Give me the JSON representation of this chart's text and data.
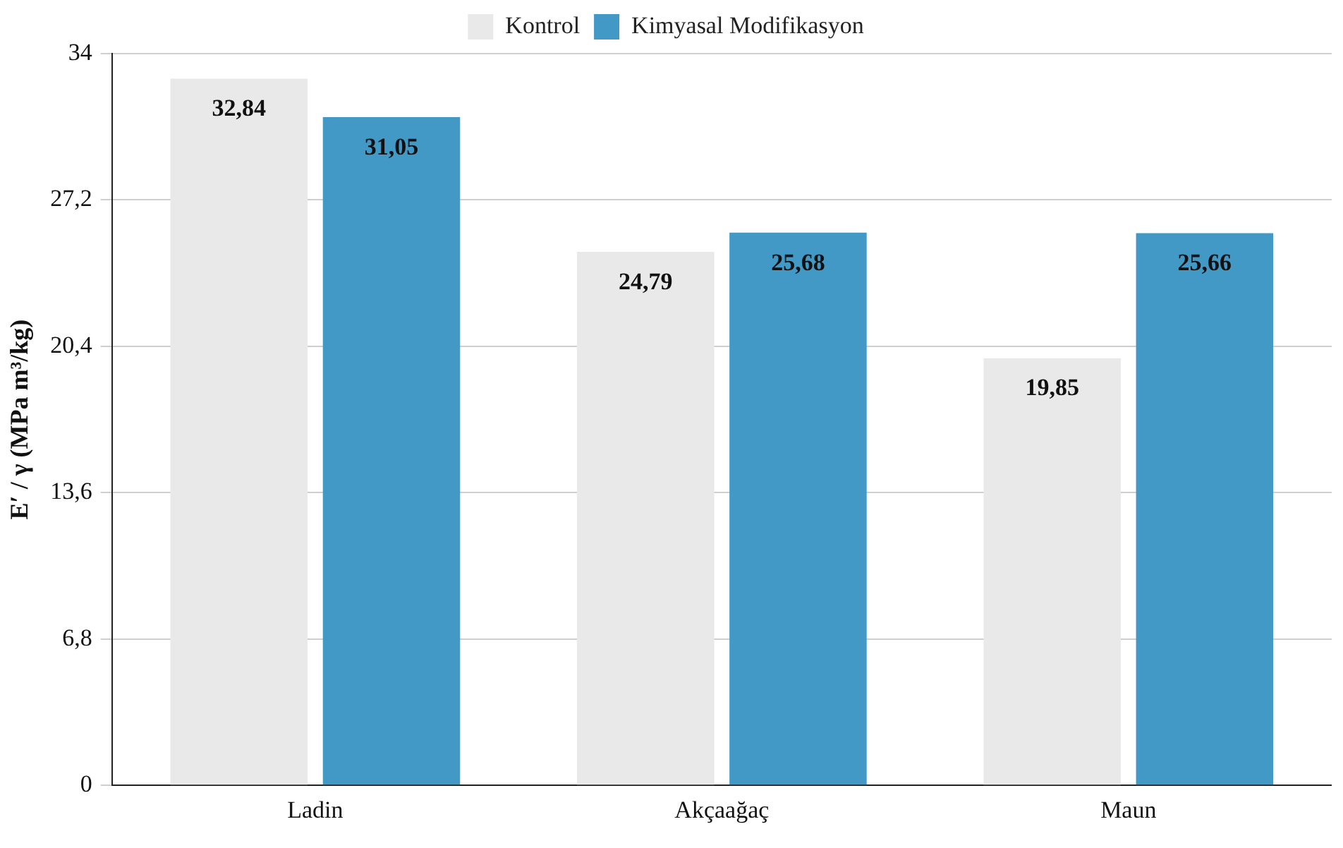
{
  "chart_data": {
    "type": "bar",
    "ylabel": "E′ / γ (MPa m³/kg)",
    "categories": [
      "Ladin",
      "Akçaağaç",
      "Maun"
    ],
    "series": [
      {
        "name": "Kontrol",
        "color": "#e9e9e9",
        "values": [
          32.84,
          24.79,
          19.85
        ],
        "value_labels": [
          "32,84",
          "24,79",
          "19,85"
        ]
      },
      {
        "name": "Kimyasal Modifikasyon",
        "color": "#4399c6",
        "values": [
          31.05,
          25.68,
          25.66
        ],
        "value_labels": [
          "31,05",
          "25,68",
          "25,66"
        ]
      }
    ],
    "ylim": [
      0,
      34
    ],
    "yticks": [
      0,
      {
        "value": 6.8,
        "label": "6,8"
      },
      {
        "value": 13.6,
        "label": "13,6"
      },
      {
        "value": 20.4,
        "label": "20,4"
      },
      {
        "value": 27.2,
        "label": "27,2"
      },
      34
    ],
    "grid": "y",
    "legend": "top"
  }
}
